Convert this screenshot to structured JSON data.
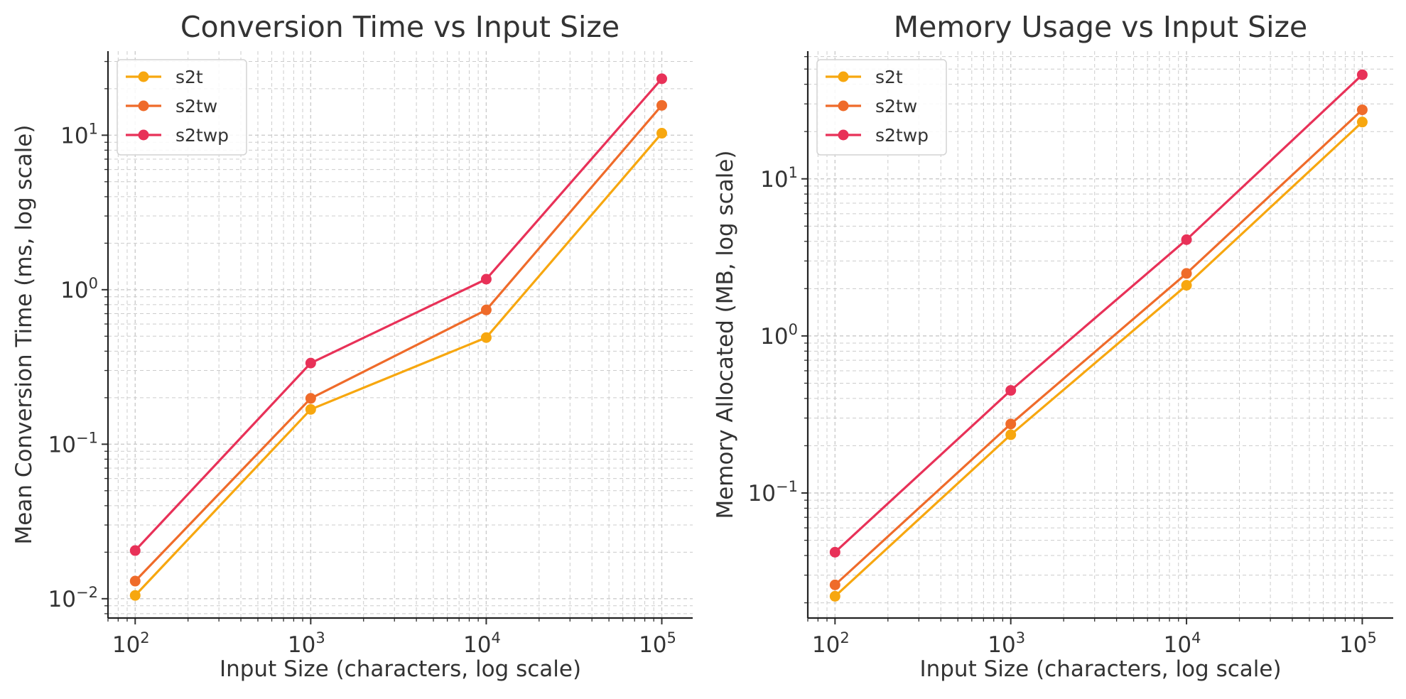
{
  "colors": {
    "s2t": "#F7A70F",
    "s2tw": "#EF6B2A",
    "s2twp": "#E83158"
  },
  "chart_data": [
    {
      "type": "line",
      "title": "Conversion Time vs Input Size",
      "xlabel": "Input Size (characters, log scale)",
      "ylabel": "Mean Conversion Time (ms, log scale)",
      "xscale": "log",
      "yscale": "log",
      "x": [
        100,
        1000,
        10000,
        100000
      ],
      "xlim": [
        70,
        150000
      ],
      "ylim": [
        0.0075,
        35
      ],
      "x_ticks": [
        {
          "base": "10",
          "exp": "2"
        },
        {
          "base": "10",
          "exp": "3"
        },
        {
          "base": "10",
          "exp": "4"
        },
        {
          "base": "10",
          "exp": "5"
        }
      ],
      "y_ticks": [
        {
          "base": "10",
          "exp": "−2",
          "value": 0.01
        },
        {
          "base": "10",
          "exp": "−1",
          "value": 0.1
        },
        {
          "base": "10",
          "exp": "0",
          "value": 1
        },
        {
          "base": "10",
          "exp": "1",
          "value": 10
        }
      ],
      "grid": true,
      "legend_position": "top-left",
      "series": [
        {
          "name": "s2t",
          "color_key": "s2t",
          "values": [
            0.0105,
            0.168,
            0.49,
            10.3
          ]
        },
        {
          "name": "s2tw",
          "color_key": "s2tw",
          "values": [
            0.013,
            0.198,
            0.74,
            15.6
          ]
        },
        {
          "name": "s2twp",
          "color_key": "s2twp",
          "values": [
            0.0205,
            0.335,
            1.17,
            23.2
          ]
        }
      ]
    },
    {
      "type": "line",
      "title": "Memory Usage vs Input Size",
      "xlabel": "Input Size (characters, log scale)",
      "ylabel": "Memory Allocated (MB, log scale)",
      "xscale": "log",
      "yscale": "log",
      "x": [
        100,
        1000,
        10000,
        100000
      ],
      "xlim": [
        70,
        150000
      ],
      "ylim": [
        0.016,
        65
      ],
      "x_ticks": [
        {
          "base": "10",
          "exp": "2"
        },
        {
          "base": "10",
          "exp": "3"
        },
        {
          "base": "10",
          "exp": "4"
        },
        {
          "base": "10",
          "exp": "5"
        }
      ],
      "y_ticks": [
        {
          "base": "10",
          "exp": "−1",
          "value": 0.1
        },
        {
          "base": "10",
          "exp": "0",
          "value": 1
        },
        {
          "base": "10",
          "exp": "1",
          "value": 10
        }
      ],
      "grid": true,
      "legend_position": "top-left",
      "series": [
        {
          "name": "s2t",
          "color_key": "s2t",
          "values": [
            0.022,
            0.235,
            2.1,
            23.0
          ]
        },
        {
          "name": "s2tw",
          "color_key": "s2tw",
          "values": [
            0.026,
            0.275,
            2.5,
            27.5
          ]
        },
        {
          "name": "s2twp",
          "color_key": "s2twp",
          "values": [
            0.042,
            0.45,
            4.1,
            46.0
          ]
        }
      ]
    }
  ]
}
